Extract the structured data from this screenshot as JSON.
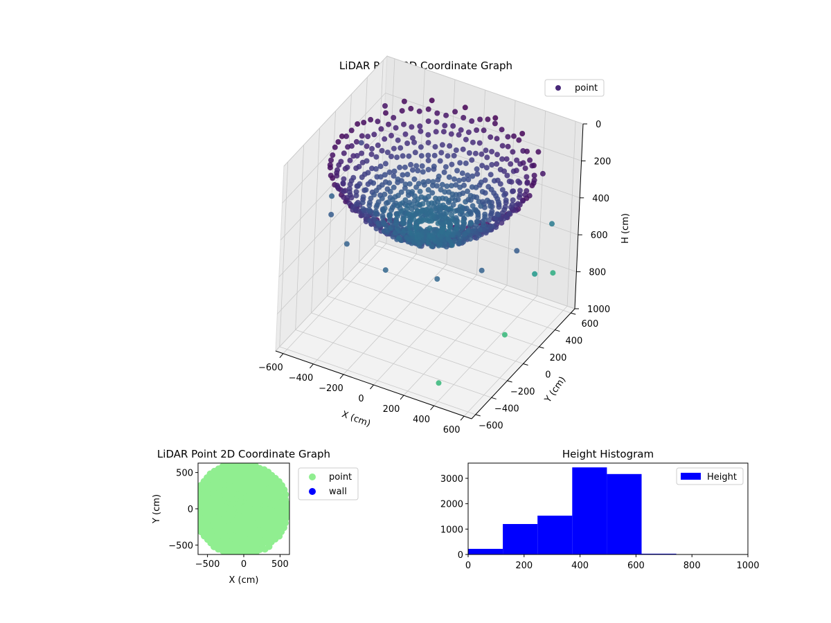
{
  "chart_data": [
    {
      "type": "scatter",
      "projection": "3d",
      "title": "LiDAR Point 3D Coordinate Graph",
      "xlabel": "X (cm)",
      "ylabel": "Y (cm)",
      "zlabel": "H (cm)",
      "xlim": [
        -650,
        650
      ],
      "ylim": [
        -650,
        650
      ],
      "zlim": [
        1000,
        0
      ],
      "xticks": [
        "−600",
        "−400",
        "−200",
        "0",
        "200",
        "400",
        "600"
      ],
      "yticks": [
        "−600",
        "−400",
        "−200",
        "0",
        "200",
        "400",
        "600"
      ],
      "zticks": [
        "0",
        "200",
        "400",
        "600",
        "800",
        "1000"
      ],
      "legend": {
        "entries": [
          "point"
        ],
        "position": "top-right"
      },
      "colormap": "viridis",
      "marker_color": "#482878",
      "grid": true,
      "series": [
        {
          "name": "point",
          "description": "bowl-shaped point cloud, dense ring at rim (H ≈ 100–250) and floor (H ≈ 350–450)",
          "sample_points": [
            [
              -550,
              450,
              150
            ],
            [
              -450,
              500,
              120
            ],
            [
              -300,
              560,
              100
            ],
            [
              -100,
              600,
              100
            ],
            [
              100,
              600,
              100
            ],
            [
              300,
              560,
              110
            ],
            [
              450,
              480,
              130
            ],
            [
              550,
              350,
              160
            ],
            [
              -600,
              -100,
              400
            ],
            [
              -500,
              -300,
              380
            ],
            [
              -300,
              -480,
              400
            ],
            [
              0,
              -560,
              420
            ],
            [
              300,
              -480,
              420
            ],
            [
              500,
              -300,
              400
            ],
            [
              600,
              -50,
              380
            ],
            [
              0,
              0,
              450
            ],
            [
              -200,
              100,
              430
            ],
            [
              200,
              -100,
              440
            ],
            [
              100,
              200,
              420
            ],
            [
              -100,
              -200,
              440
            ],
            [
              550,
              500,
              500
            ],
            [
              600,
              200,
              620
            ],
            [
              620,
              400,
              700
            ],
            [
              -620,
              300,
              300
            ],
            [
              400,
              -600,
              900
            ],
            [
              620,
              -200,
              760
            ]
          ]
        }
      ]
    },
    {
      "type": "scatter",
      "title": "LiDAR Point 2D Coordinate Graph",
      "xlabel": "X (cm)",
      "ylabel": "Y (cm)",
      "xlim": [
        -630,
        630
      ],
      "ylim": [
        -630,
        630
      ],
      "xticks": [
        "−500",
        "0",
        "500"
      ],
      "yticks": [
        "−500",
        "0",
        "500"
      ],
      "legend": {
        "entries": [
          "point",
          "wall"
        ],
        "position": "outside-right"
      },
      "series": [
        {
          "name": "point",
          "color": "#90ee90"
        },
        {
          "name": "wall",
          "color": "#0000ff",
          "points": []
        }
      ]
    },
    {
      "type": "bar",
      "subtype": "histogram",
      "title": "Height Histogram",
      "xlim": [
        0,
        1000
      ],
      "ylim": [
        0,
        3600
      ],
      "xticks": [
        "0",
        "200",
        "400",
        "600",
        "800",
        "1000"
      ],
      "yticks": [
        "0",
        "1000",
        "2000",
        "3000"
      ],
      "legend": {
        "entries": [
          "Height"
        ],
        "position": "top-right"
      },
      "series": [
        {
          "name": "Height",
          "color": "#0000ff",
          "bins": [
            0,
            124,
            248,
            372,
            496,
            620,
            744,
            868,
            1000
          ],
          "values": [
            220,
            1200,
            1530,
            3430,
            3170,
            30,
            5,
            5
          ]
        }
      ]
    }
  ]
}
